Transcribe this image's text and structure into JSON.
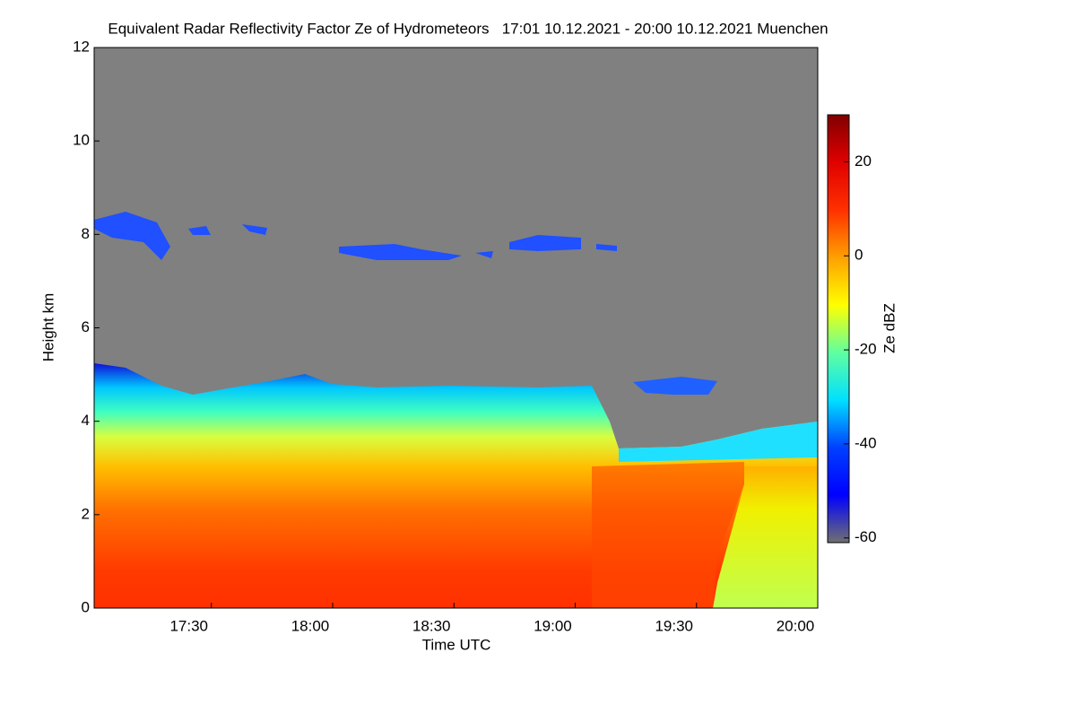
{
  "chart_data": {
    "type": "heatmap",
    "title": "Equivalent Radar Reflectivity Factor Ze of Hydrometeors   17:01 10.12.2021 - 20:00 10.12.2021 Muenchen",
    "xlabel": "Time UTC",
    "ylabel": "Height km",
    "colorbar_label": "Ze dBZ",
    "xlim": [
      17.0167,
      20.0
    ],
    "xticks": [
      {
        "value": 17.5,
        "label": "17:30"
      },
      {
        "value": 18.0,
        "label": "18:00"
      },
      {
        "value": 18.5,
        "label": "18:30"
      },
      {
        "value": 19.0,
        "label": "19:00"
      },
      {
        "value": 19.5,
        "label": "19:30"
      },
      {
        "value": 20.0,
        "label": "20:00"
      }
    ],
    "ylim": [
      0,
      12
    ],
    "yticks": [
      0,
      2,
      4,
      6,
      8,
      10,
      12
    ],
    "clim": [
      -61,
      30
    ],
    "cticks": [
      -60,
      -40,
      -20,
      0,
      20
    ],
    "colormap": [
      "#707070",
      "#0000ff",
      "#0040ff",
      "#00e0ff",
      "#60ffa0",
      "#ffff00",
      "#ffa000",
      "#ff3000",
      "#e00000",
      "#800000"
    ]
  }
}
